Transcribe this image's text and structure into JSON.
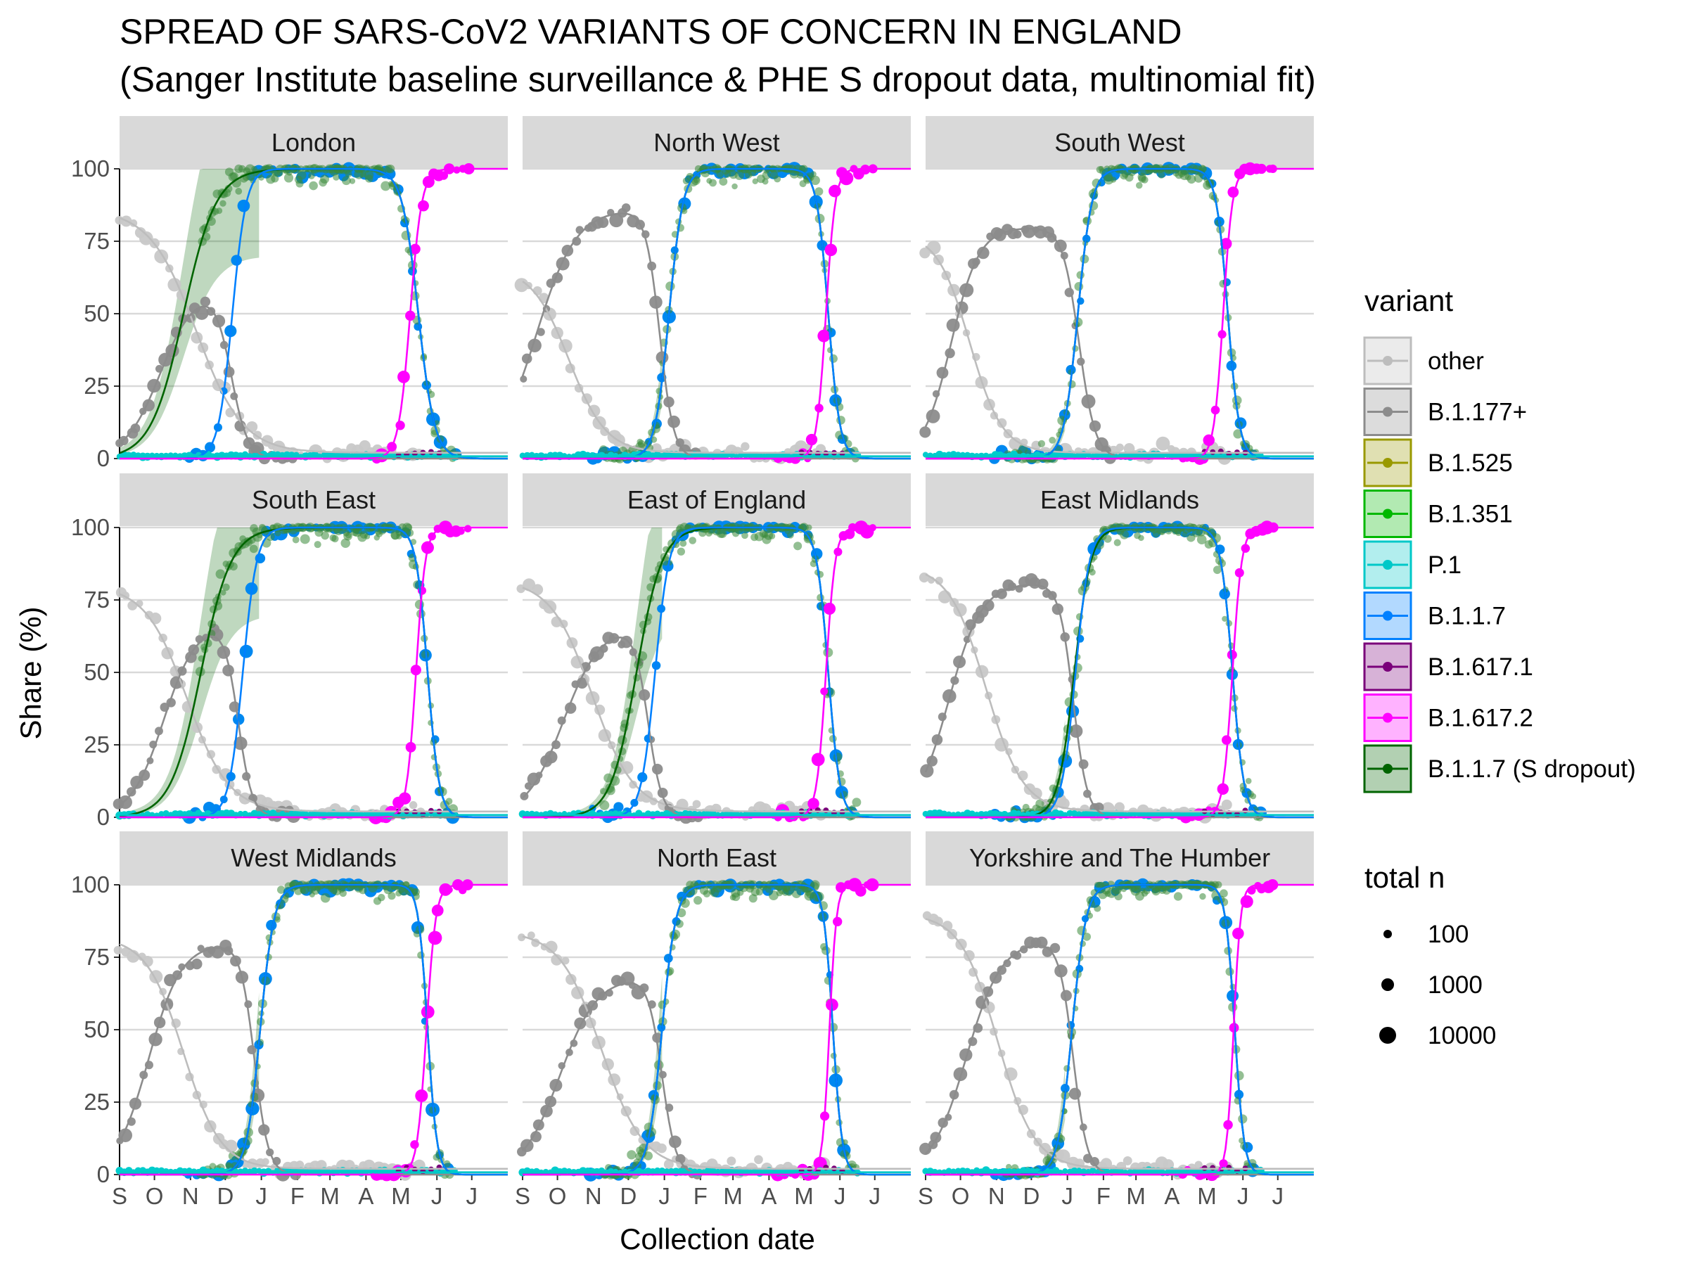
{
  "chart_data": {
    "type": "line",
    "title": "SPREAD OF SARS-CoV2 VARIANTS OF CONCERN IN ENGLAND",
    "subtitle": "(Sanger Institute baseline surveillance & PHE S dropout data, multinomial fit)",
    "xlabel": "Collection date",
    "ylabel": "Share (%)",
    "x_ticks": [
      "S",
      "O",
      "N",
      "D",
      "J",
      "F",
      "M",
      "A",
      "M",
      "J",
      "J"
    ],
    "y_ticks": [
      "0",
      "25",
      "50",
      "75",
      "100"
    ],
    "ylim": [
      0,
      100
    ],
    "xlim": [
      "2020-09-01",
      "2021-07-31"
    ],
    "grid": true,
    "legend_placement": "right",
    "legend_variant_title": "variant",
    "legend_size_title": "total n",
    "size_legend": [
      "100",
      "1000",
      "10000"
    ],
    "series": [
      {
        "name": "other",
        "color": "#BDBDBD",
        "points_color": "#C8C8C8"
      },
      {
        "name": "B.1.177+",
        "color": "#8C8C8C",
        "points_color": "#8C8C8C"
      },
      {
        "name": "B.1.525",
        "color": "#999900",
        "points_color": "#999900"
      },
      {
        "name": "B.1.351",
        "color": "#00B800",
        "points_color": "#00C000"
      },
      {
        "name": "P.1",
        "color": "#00C8C8",
        "points_color": "#00CCCC"
      },
      {
        "name": "B.1.1.7",
        "color": "#0080FF",
        "points_color": "#0088F0"
      },
      {
        "name": "B.1.617.1",
        "color": "#7A007A",
        "points_color": "#7A007A"
      },
      {
        "name": "B.1.617.2",
        "color": "#FF00FF",
        "points_color": "#FF00FF"
      },
      {
        "name": "B.1.1.7 (S dropout)",
        "color": "#006400",
        "points_color": "#3A8A3A"
      }
    ],
    "panels": [
      {
        "region": "London",
        "other": {
          "a": 84,
          "mid": 66,
          "w": 20
        },
        "b1177": {
          "peak": 56,
          "rise": 35,
          "riseW": 15,
          "fall": 96,
          "fallW": 7
        },
        "alpha": {
          "mid": 97,
          "w": 6,
          "fall": 257,
          "fallW": 7
        },
        "sdrop": {
          "mid": 55,
          "w": 14
        },
        "delta": {
          "mid": 250,
          "w": 5
        }
      },
      {
        "region": "North West",
        "other": {
          "a": 64,
          "mid": 40,
          "w": 16
        },
        "b1177": {
          "peak": 82,
          "rise": 12,
          "riseW": 17,
          "fall": 118,
          "fallW": 6
        },
        "alpha": {
          "mid": 126,
          "w": 6,
          "fall": 263,
          "fallW": 5
        },
        "sdrop": {
          "mid": 126,
          "w": 6
        },
        "delta": {
          "mid": 261,
          "w": 4
        }
      },
      {
        "region": "South West",
        "other": {
          "a": 76,
          "mid": 38,
          "w": 14
        },
        "b1177": {
          "peak": 76,
          "rise": 22,
          "riseW": 12,
          "fall": 132,
          "fallW": 7
        },
        "alpha": {
          "mid": 131,
          "w": 6,
          "fall": 260,
          "fallW": 5
        },
        "sdrop": {
          "mid": 131,
          "w": 6
        },
        "delta": {
          "mid": 256,
          "w": 4
        }
      },
      {
        "region": "South East",
        "other": {
          "a": 78,
          "mid": 58,
          "w": 18
        },
        "b1177": {
          "peak": 64,
          "rise": 38,
          "riseW": 14,
          "fall": 102,
          "fallW": 6
        },
        "alpha": {
          "mid": 106,
          "w": 6,
          "fall": 265,
          "fallW": 5
        },
        "sdrop": {
          "mid": 70,
          "w": 13
        },
        "delta": {
          "mid": 255,
          "w": 4
        }
      },
      {
        "region": "East of England",
        "other": {
          "a": 80,
          "mid": 60,
          "w": 18
        },
        "b1177": {
          "peak": 63,
          "rise": 35,
          "riseW": 16,
          "fall": 108,
          "fallW": 6
        },
        "alpha": {
          "mid": 114,
          "w": 6,
          "fall": 263,
          "fallW": 5
        },
        "sdrop": {
          "mid": 98,
          "w": 11
        },
        "delta": {
          "mid": 261,
          "w": 4
        }
      },
      {
        "region": "East Midlands",
        "other": {
          "a": 85,
          "mid": 52,
          "w": 16
        },
        "b1177": {
          "peak": 77,
          "rise": 20,
          "riseW": 14,
          "fall": 127,
          "fallW": 6
        },
        "alpha": {
          "mid": 129,
          "w": 6,
          "fall": 264,
          "fallW": 5
        },
        "sdrop": {
          "mid": 128,
          "w": 7
        },
        "delta": {
          "mid": 264,
          "w": 4
        }
      },
      {
        "region": "West Midlands",
        "other": {
          "a": 80,
          "mid": 55,
          "w": 16
        },
        "b1177": {
          "peak": 76,
          "rise": 25,
          "riseW": 14,
          "fall": 116,
          "fallW": 6
        },
        "alpha": {
          "mid": 121,
          "w": 6,
          "fall": 265,
          "fallW": 4
        },
        "sdrop": {
          "mid": 121,
          "w": 6
        },
        "delta": {
          "mid": 264,
          "w": 4
        }
      },
      {
        "region": "North East",
        "other": {
          "a": 82,
          "mid": 68,
          "w": 18
        },
        "b1177": {
          "peak": 65,
          "rise": 32,
          "riseW": 16,
          "fall": 120,
          "fallW": 6
        },
        "alpha": {
          "mid": 120,
          "w": 6,
          "fall": 267,
          "fallW": 4
        },
        "sdrop": {
          "mid": 120,
          "w": 6
        },
        "delta": {
          "mid": 264,
          "w": 3
        }
      },
      {
        "region": "Yorkshire and The Humber",
        "other": {
          "a": 88,
          "mid": 62,
          "w": 16
        },
        "b1177": {
          "peak": 77,
          "rise": 35,
          "riseW": 15,
          "fall": 127,
          "fallW": 6
        },
        "alpha": {
          "mid": 126,
          "w": 6,
          "fall": 266,
          "fallW": 4
        },
        "sdrop": {
          "mid": 126,
          "w": 6
        },
        "delta": {
          "mid": 265,
          "w": 3
        }
      }
    ]
  }
}
